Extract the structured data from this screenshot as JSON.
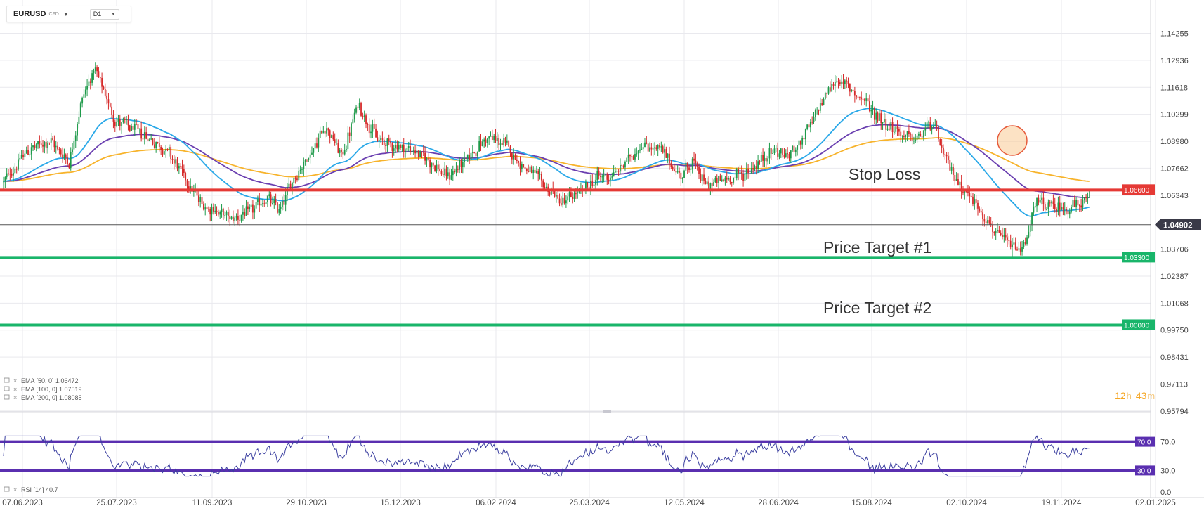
{
  "toolbar": {
    "symbol": "EURUSD",
    "instrument_type": "CFD",
    "timeframe": "D1"
  },
  "countdown": {
    "hours": "12",
    "h_unit": "h",
    "minutes": "43",
    "m_unit": "m"
  },
  "colors": {
    "bull": "#1e9a4a",
    "bear": "#d62a2a",
    "ema50": "#29a8e8",
    "ema100": "#6a3fb0",
    "ema200": "#f7b32b",
    "stop": "#e53935",
    "target": "#19b56a",
    "rsi_band": "#5a2fb0",
    "rsi_line": "#3b3fa0"
  },
  "chart_data": [
    {
      "type": "candlestick",
      "symbol": "EURUSD",
      "timeframe": "D1",
      "x_tick_labels": [
        "07.06.2023",
        "25.07.2023",
        "11.09.2023",
        "29.10.2023",
        "15.12.2023",
        "06.02.2024",
        "25.03.2024",
        "12.05.2024",
        "28.06.2024",
        "15.08.2024",
        "02.10.2024",
        "19.11.2024",
        "02.01.2025"
      ],
      "y_tick_labels": [
        "1.14255",
        "1.12936",
        "1.11618",
        "1.10299",
        "1.08980",
        "1.07662",
        "1.06343",
        "1.03706",
        "1.02387",
        "1.01068",
        "0.99750",
        "0.98431",
        "0.97113",
        "0.95794"
      ],
      "ylim": [
        0.9579,
        1.152
      ],
      "current_price": {
        "label": "1.04902",
        "value": 1.04902
      },
      "anchor_path": [
        [
          0,
          1.07
        ],
        [
          14,
          1.085
        ],
        [
          28,
          1.09
        ],
        [
          40,
          1.08
        ],
        [
          48,
          1.112
        ],
        [
          55,
          1.125
        ],
        [
          68,
          1.1
        ],
        [
          85,
          1.093
        ],
        [
          100,
          1.085
        ],
        [
          120,
          1.06
        ],
        [
          138,
          1.052
        ],
        [
          150,
          1.055
        ],
        [
          160,
          1.062
        ],
        [
          168,
          1.056
        ],
        [
          176,
          1.071
        ],
        [
          190,
          1.088
        ],
        [
          196,
          1.098
        ],
        [
          206,
          1.082
        ],
        [
          216,
          1.108
        ],
        [
          228,
          1.09
        ],
        [
          238,
          1.088
        ],
        [
          250,
          1.085
        ],
        [
          260,
          1.08
        ],
        [
          270,
          1.072
        ],
        [
          282,
          1.081
        ],
        [
          295,
          1.092
        ],
        [
          306,
          1.088
        ],
        [
          316,
          1.078
        ],
        [
          330,
          1.068
        ],
        [
          340,
          1.06
        ],
        [
          352,
          1.065
        ],
        [
          362,
          1.072
        ],
        [
          373,
          1.074
        ],
        [
          388,
          1.088
        ],
        [
          400,
          1.086
        ],
        [
          412,
          1.073
        ],
        [
          420,
          1.08
        ],
        [
          428,
          1.068
        ],
        [
          440,
          1.071
        ],
        [
          454,
          1.075
        ],
        [
          470,
          1.086
        ],
        [
          478,
          1.082
        ],
        [
          492,
          1.097
        ],
        [
          500,
          1.112
        ],
        [
          508,
          1.12
        ],
        [
          520,
          1.113
        ],
        [
          530,
          1.104
        ],
        [
          545,
          1.094
        ],
        [
          556,
          1.09
        ],
        [
          566,
          1.1
        ],
        [
          574,
          1.08
        ],
        [
          582,
          1.07
        ],
        [
          596,
          1.055
        ],
        [
          604,
          1.045
        ],
        [
          612,
          1.04
        ],
        [
          620,
          1.036
        ],
        [
          630,
          1.06
        ],
        [
          642,
          1.057
        ],
        [
          655,
          1.058
        ],
        [
          662,
          1.062
        ]
      ],
      "levels": [
        {
          "name": "Stop Loss",
          "value": 1.066,
          "label": "1.06600"
        },
        {
          "name": "Price Target #1",
          "value": 1.033,
          "label": "1.03300"
        },
        {
          "name": "Price Target #2",
          "value": 1.0,
          "label": "1.00000"
        }
      ],
      "series": [
        {
          "name": "EMA [50, 0]",
          "last_value": "1.06472"
        },
        {
          "name": "EMA [100, 0]",
          "last_value": "1.07519"
        },
        {
          "name": "EMA [200, 0]",
          "last_value": "1.08085"
        }
      ],
      "annotations": [
        "Stop Loss",
        "Price Target #1",
        "Price Target #2"
      ],
      "highlight": {
        "type": "circle",
        "x_label_near": "02.10.2024",
        "description": "EMA crossover"
      },
      "grid": true
    },
    {
      "type": "line",
      "name": "RSI [14]",
      "last_value": "40.7",
      "ylim": [
        0,
        100
      ],
      "y_tick_labels": [
        "70.0",
        "30.0",
        "0.0"
      ],
      "levels": [
        {
          "value": 70.0,
          "label": "70.0"
        },
        {
          "value": 30.0,
          "label": "30.0"
        }
      ],
      "grid": true
    }
  ]
}
